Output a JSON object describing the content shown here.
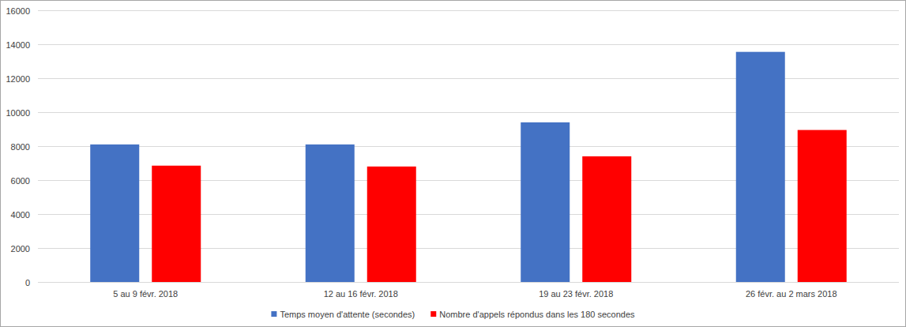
{
  "chart_data": {
    "type": "bar",
    "categories": [
      "5 au 9 févr. 2018",
      "12 au 16 févr. 2018",
      "19 au 23 févr. 2018",
      "26 févr. au 2 mars 2018"
    ],
    "series": [
      {
        "name": "Temps moyen d'attente (secondes)",
        "color": "#4472c4",
        "values": [
          8100,
          8100,
          9400,
          13550
        ]
      },
      {
        "name": "Nombre d'appels répondus dans les 180 secondes",
        "color": "#ff0000",
        "values": [
          6850,
          6800,
          7400,
          8950
        ]
      }
    ],
    "ylim": [
      0,
      16000
    ],
    "yticks": [
      0,
      2000,
      4000,
      6000,
      8000,
      10000,
      12000,
      14000,
      16000
    ],
    "grid": true,
    "legend": "bottom"
  }
}
